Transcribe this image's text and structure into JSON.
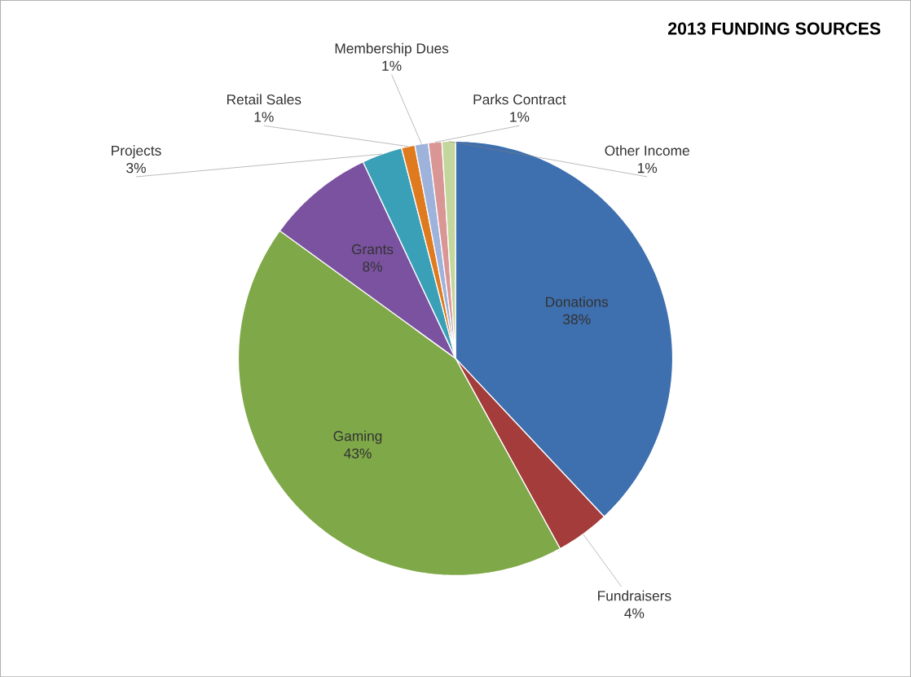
{
  "chart_data": {
    "type": "pie",
    "title": "2013 FUNDING SOURCES",
    "categories": [
      "Donations",
      "Fundraisers",
      "Gaming",
      "Grants",
      "Projects",
      "Retail Sales",
      "Membership Dues",
      "Parks Contract",
      "Other Income"
    ],
    "values": [
      38,
      4,
      43,
      8,
      3,
      1,
      1,
      1,
      1
    ],
    "value_labels": [
      "38%",
      "4%",
      "43%",
      "8%",
      "3%",
      "1%",
      "1%",
      "1%",
      "1%"
    ],
    "colors": [
      "#3e6fae",
      "#a33c3a",
      "#7fa848",
      "#7b52a0",
      "#3aa0b8",
      "#e07a1f",
      "#9db3dc",
      "#d99694",
      "#c3d69b"
    ]
  }
}
